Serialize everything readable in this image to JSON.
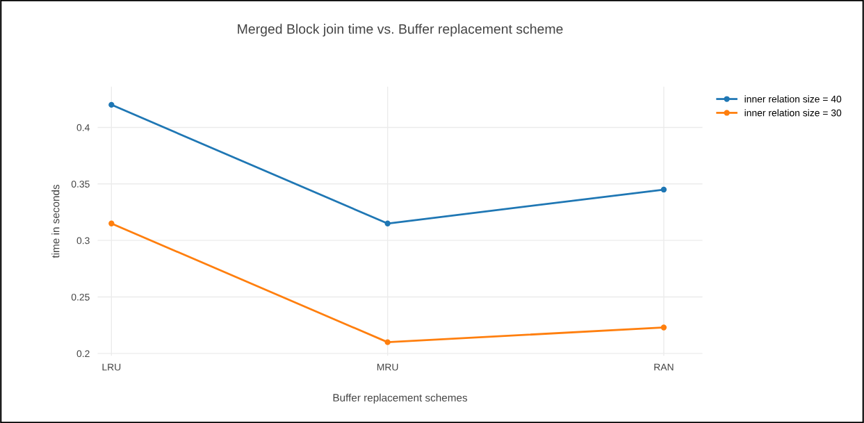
{
  "chart_data": {
    "type": "line",
    "title": "Merged Block join time vs. Buffer replacement scheme",
    "xlabel": "Buffer replacement schemes",
    "ylabel": "time in seconds",
    "categories": [
      "LRU",
      "MRU",
      "RAN"
    ],
    "series": [
      {
        "name": "inner relation size = 40",
        "color": "#1f77b4",
        "values": [
          0.42,
          0.315,
          0.345
        ]
      },
      {
        "name": "inner relation size = 30",
        "color": "#ff7f0e",
        "values": [
          0.315,
          0.21,
          0.223
        ]
      }
    ],
    "ylim": [
      0.198,
      0.436
    ],
    "yticks": [
      0.2,
      0.25,
      0.3,
      0.35,
      0.4
    ],
    "grid": true,
    "legend": "top right",
    "marker": "circle",
    "line_style": "solid"
  }
}
